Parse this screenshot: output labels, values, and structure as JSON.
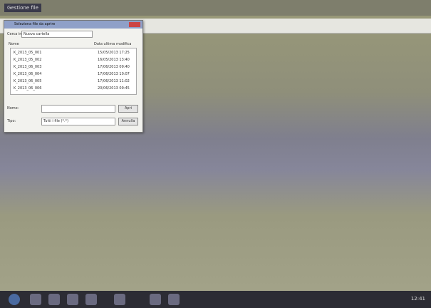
{
  "header": {
    "title": "Gestione file"
  },
  "dialog": {
    "title": "Seleziona file da aprire",
    "look_in_label": "Cerca in:",
    "look_in_value": "Nuova cartella",
    "columns": [
      "Nome",
      "Data ultima modifica"
    ],
    "files": [
      {
        "name": "K_2013_05_001",
        "date": "15/05/2013 17:25"
      },
      {
        "name": "K_2013_05_002",
        "date": "16/05/2013 13:40"
      },
      {
        "name": "K_2013_06_003",
        "date": "17/06/2013 09:40"
      },
      {
        "name": "K_2013_06_004",
        "date": "17/06/2013 10:07"
      },
      {
        "name": "K_2013_06_005",
        "date": "17/06/2013 11:02"
      },
      {
        "name": "K_2013_06_006",
        "date": "20/06/2013 09:45"
      }
    ],
    "name_label": "Nome:",
    "open_button": "Apri",
    "type_label": "Tipo:",
    "type_value": "Tutti i file (*.*)",
    "cancel_button": "Annulla"
  },
  "taskbar": {
    "clock": "12:41"
  }
}
